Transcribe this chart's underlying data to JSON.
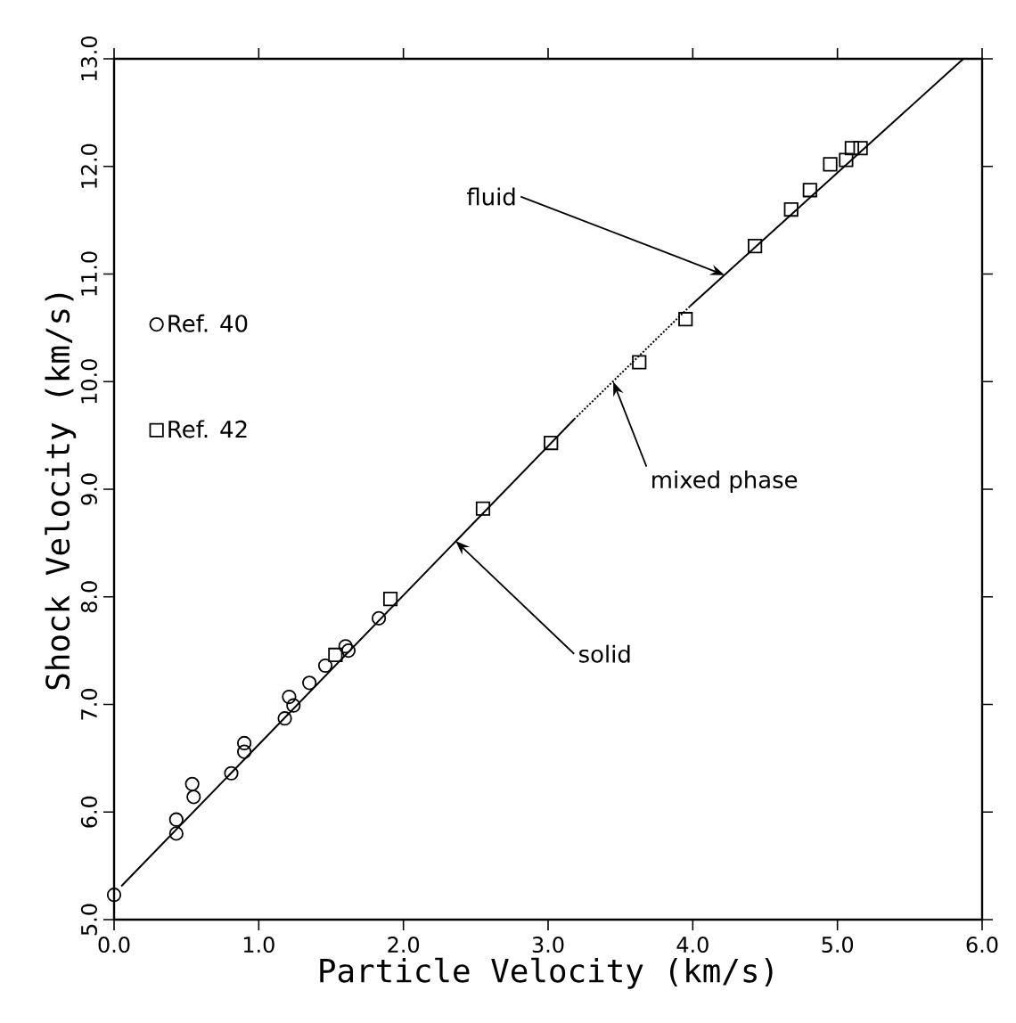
{
  "chart_data": {
    "type": "scatter",
    "xlabel": "Particle Velocity (km/s)",
    "ylabel": "Shock Velocity (km/s)",
    "xlim": [
      0,
      6
    ],
    "ylim": [
      5,
      13
    ],
    "xticks": [
      {
        "value": 0,
        "label": "0.0"
      },
      {
        "value": 1,
        "label": "1.0"
      },
      {
        "value": 2,
        "label": "2.0"
      },
      {
        "value": 3,
        "label": "3.0"
      },
      {
        "value": 4,
        "label": "4.0"
      },
      {
        "value": 5,
        "label": "5.0"
      },
      {
        "value": 6,
        "label": "6.0"
      }
    ],
    "yticks": [
      {
        "value": 5,
        "label": "5.0"
      },
      {
        "value": 6,
        "label": "6.0"
      },
      {
        "value": 7,
        "label": "7.0"
      },
      {
        "value": 8,
        "label": "8.0"
      },
      {
        "value": 9,
        "label": "9.0"
      },
      {
        "value": 10,
        "label": "10.0"
      },
      {
        "value": 11,
        "label": "11.0"
      },
      {
        "value": 12,
        "label": "12.0"
      },
      {
        "value": 13,
        "label": "13.0"
      }
    ],
    "legend": "left",
    "grid": false,
    "series": [
      {
        "name": "Ref. 40",
        "marker": "circle",
        "color": "#000000",
        "x": [
          0.0,
          0.43,
          0.43,
          0.54,
          0.55,
          0.81,
          0.9,
          0.9,
          1.18,
          1.21,
          1.24,
          1.35,
          1.46,
          1.6,
          1.62,
          1.83
        ],
        "values": [
          5.23,
          5.8,
          5.93,
          6.26,
          6.14,
          6.36,
          6.64,
          6.56,
          6.87,
          7.07,
          6.99,
          7.2,
          7.36,
          7.54,
          7.5,
          7.8
        ]
      },
      {
        "name": "Ref. 42",
        "marker": "square",
        "color": "#000000",
        "x": [
          1.53,
          1.91,
          2.55,
          3.02,
          3.63,
          3.95,
          4.43,
          4.68,
          4.81,
          4.95,
          5.06,
          5.1,
          5.16
        ],
        "values": [
          7.46,
          7.98,
          8.82,
          9.43,
          10.18,
          10.58,
          11.26,
          11.6,
          11.78,
          12.02,
          12.06,
          12.17,
          12.17
        ]
      },
      {
        "type": "line",
        "line_style": "solid",
        "marker": "none",
        "color": "#000000",
        "x": [
          0.05,
          3.18
        ],
        "values": [
          5.31,
          9.65
        ]
      },
      {
        "type": "line",
        "line_style": "dotted",
        "marker": "none",
        "color": "#000000",
        "x": [
          3.18,
          3.98
        ],
        "values": [
          9.65,
          10.7
        ]
      },
      {
        "type": "line",
        "line_style": "solid",
        "marker": "none",
        "color": "#000000",
        "x": [
          3.98,
          5.87
        ],
        "values": [
          10.7,
          13.0
        ]
      }
    ],
    "annotations": [
      {
        "text": "fluid",
        "x": 4.22,
        "y": 10.99
      },
      {
        "text": "mixed phase",
        "x": 3.45,
        "y": 10.0
      },
      {
        "text": "solid",
        "x": 2.36,
        "y": 8.52
      }
    ]
  }
}
